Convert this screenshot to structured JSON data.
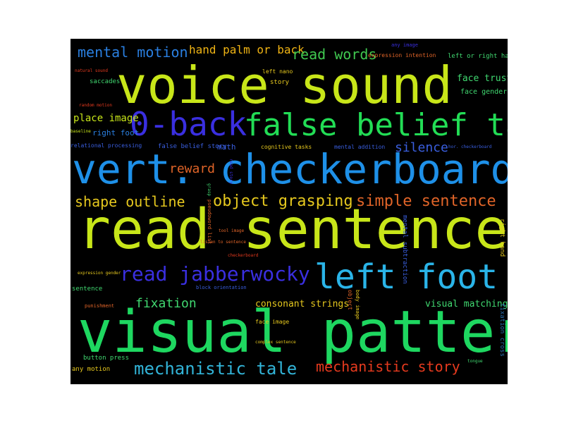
{
  "words": [
    {
      "id": "voice-sound",
      "text": "voice sound",
      "color": "#c8e619"
    },
    {
      "id": "read-sentence",
      "text": "read sentence",
      "color": "#c8e619"
    },
    {
      "id": "vert-checkerboard",
      "text": "vert. checkerboard",
      "color": "#1e90e8"
    },
    {
      "id": "visual-pattern",
      "text": "visual pattern",
      "color": "#1ed760"
    },
    {
      "id": "false-belief-tale",
      "text": "false belief tale",
      "color": "#22dd55"
    },
    {
      "id": "zero-back",
      "text": "0-back",
      "color": "#3a2fe0"
    },
    {
      "id": "left-foot",
      "text": "left foot",
      "color": "#2ab4e8"
    },
    {
      "id": "read-jabberwocky",
      "text": "read jabberwocky",
      "color": "#3a2fe0"
    },
    {
      "id": "mechanistic-tale",
      "text": "mechanistic tale",
      "color": "#32b4d8"
    },
    {
      "id": "mechanistic-story",
      "text": "mechanistic story",
      "color": "#e63a1e"
    },
    {
      "id": "mental-motion",
      "text": "mental motion",
      "color": "#2a7fe0"
    },
    {
      "id": "hand-palm-or-back",
      "text": "hand palm or back",
      "color": "#f0b414"
    },
    {
      "id": "read-words",
      "text": "read words",
      "color": "#40c850"
    },
    {
      "id": "object-grasping",
      "text": "object grasping",
      "color": "#e6c81e"
    },
    {
      "id": "simple-sentence",
      "text": "simple sentence",
      "color": "#e06428"
    },
    {
      "id": "shape-outline",
      "text": "shape outline",
      "color": "#e6c81e"
    },
    {
      "id": "reward",
      "text": "reward",
      "color": "#e06428"
    },
    {
      "id": "silence",
      "text": "silence",
      "color": "#3a5fe0"
    },
    {
      "id": "fixation",
      "text": "fixation",
      "color": "#40d870"
    },
    {
      "id": "place-image",
      "text": "place image",
      "color": "#c8e619"
    },
    {
      "id": "consonant-strings",
      "text": "consonant strings",
      "color": "#e6c81e"
    },
    {
      "id": "visual-matching",
      "text": "visual matching",
      "color": "#40d870"
    },
    {
      "id": "face-trusty",
      "text": "face trusty",
      "color": "#40d870"
    },
    {
      "id": "face-gender",
      "text": "face gender",
      "color": "#40d870"
    },
    {
      "id": "right-foot",
      "text": "right foot",
      "color": "#2a7fe0"
    },
    {
      "id": "saccades",
      "text": "saccades",
      "color": "#40d870"
    },
    {
      "id": "expression-intention",
      "text": "expression intention",
      "color": "#e06428"
    },
    {
      "id": "left-or-right-hand",
      "text": "left or right hand",
      "color": "#40d870"
    },
    {
      "id": "any-image",
      "text": "any image",
      "color": "#3a2fe0"
    },
    {
      "id": "left-nano",
      "text": "left nano",
      "color": "#e6c81e"
    },
    {
      "id": "story",
      "text": "story",
      "color": "#e6c81e"
    },
    {
      "id": "natural-sound",
      "text": "natural sound",
      "color": "#e63a1e"
    },
    {
      "id": "random-motion",
      "text": "random motion",
      "color": "#e63a1e"
    },
    {
      "id": "baseline",
      "text": "baseline",
      "color": "#c8e619"
    },
    {
      "id": "relational-processing",
      "text": "relational processing",
      "color": "#3a5fe0"
    },
    {
      "id": "false-belief-story",
      "text": "false belief story",
      "color": "#3a5fe0"
    },
    {
      "id": "math",
      "text": "math",
      "color": "#3a5fe0"
    },
    {
      "id": "cognitive-tasks",
      "text": "cognitive tasks",
      "color": "#e6c81e"
    },
    {
      "id": "mental-addition",
      "text": "mental addition",
      "color": "#3a5fe0"
    },
    {
      "id": "hor-checkerboard",
      "text": "hor. checkerboard",
      "color": "#3a5fe0"
    },
    {
      "id": "expression-gender",
      "text": "expression gender",
      "color": "#e6c81e"
    },
    {
      "id": "sentence",
      "text": "sentence",
      "color": "#40d870"
    },
    {
      "id": "punishment",
      "text": "punishment",
      "color": "#e06428"
    },
    {
      "id": "button-press",
      "text": "button press",
      "color": "#40d870"
    },
    {
      "id": "any-motion",
      "text": "any motion",
      "color": "#e6c81e"
    },
    {
      "id": "face-image",
      "text": "face image",
      "color": "#e6c81e"
    },
    {
      "id": "complex-sentence",
      "text": "complex sentence",
      "color": "#e6c81e"
    },
    {
      "id": "tongue",
      "text": "tongue",
      "color": "#40d870"
    },
    {
      "id": "checkerboard",
      "text": "checkerboard",
      "color": "#e63a1e"
    },
    {
      "id": "tool-image",
      "text": "tool image",
      "color": "#e06428"
    },
    {
      "id": "listen-to-sentence",
      "text": "listen to sentence",
      "color": "#e06428"
    },
    {
      "id": "block-orientation",
      "text": "block orientation",
      "color": "#3a5fe0"
    },
    {
      "id": "mental-subtraction",
      "text": "mental subtraction",
      "color": "#3a5fe0"
    },
    {
      "id": "right-hand",
      "text": "right hand",
      "color": "#e6c81e"
    },
    {
      "id": "fixation-cross",
      "text": "fixation cross",
      "color": "#2a6fb0"
    },
    {
      "id": "pseudoword-list",
      "text": "pseudoword list",
      "color": "#e06428"
    },
    {
      "id": "v-grasp",
      "text": "grasp",
      "color": "#40d870"
    },
    {
      "id": "v-object",
      "text": "object",
      "color": "#e06428"
    },
    {
      "id": "v-body",
      "text": "body image",
      "color": "#e6c81e"
    },
    {
      "id": "v-story2",
      "text": "read story",
      "color": "#3a2fe0"
    }
  ]
}
